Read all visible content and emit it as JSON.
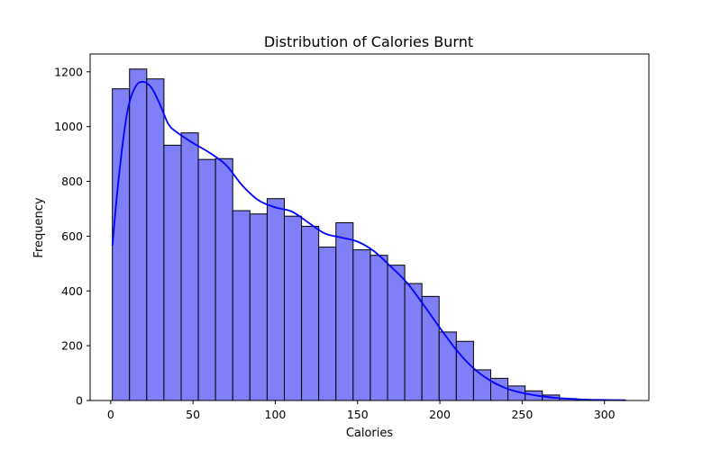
{
  "chart_data": {
    "type": "histogram",
    "title": "Distribution of Calories Burnt",
    "xlabel": "Calories",
    "ylabel": "Frequency",
    "xlim": [
      -12.5,
      327
    ],
    "ylim": [
      0,
      1265
    ],
    "xticks": [
      0,
      50,
      100,
      150,
      200,
      250,
      300
    ],
    "yticks": [
      0,
      200,
      400,
      600,
      800,
      1000,
      1200
    ],
    "bin_start": 1,
    "bin_width": 10.45,
    "values": [
      1138,
      1210,
      1174,
      932,
      977,
      880,
      883,
      693,
      681,
      737,
      673,
      636,
      560,
      649,
      550,
      530,
      494,
      427,
      380,
      250,
      216,
      112,
      81,
      53,
      35,
      20,
      7,
      3,
      1,
      0
    ],
    "kde": {
      "x": [
        1,
        5,
        10,
        15,
        20,
        25,
        30,
        35,
        40,
        50,
        60,
        70,
        80,
        90,
        100,
        110,
        120,
        130,
        140,
        150,
        160,
        170,
        180,
        190,
        200,
        210,
        220,
        230,
        240,
        250,
        260,
        270,
        280,
        290,
        300,
        313
      ],
      "y": [
        565,
        820,
        1050,
        1145,
        1163,
        1140,
        1080,
        1010,
        980,
        940,
        905,
        860,
        785,
        730,
        705,
        690,
        650,
        610,
        595,
        580,
        545,
        490,
        430,
        350,
        265,
        185,
        120,
        75,
        45,
        28,
        17,
        10,
        6,
        3,
        2,
        1
      ]
    },
    "colors": {
      "bar_fill": "#7f7ff8",
      "bar_edge": "#000000",
      "kde_line": "#0000ff"
    },
    "grid": false
  }
}
